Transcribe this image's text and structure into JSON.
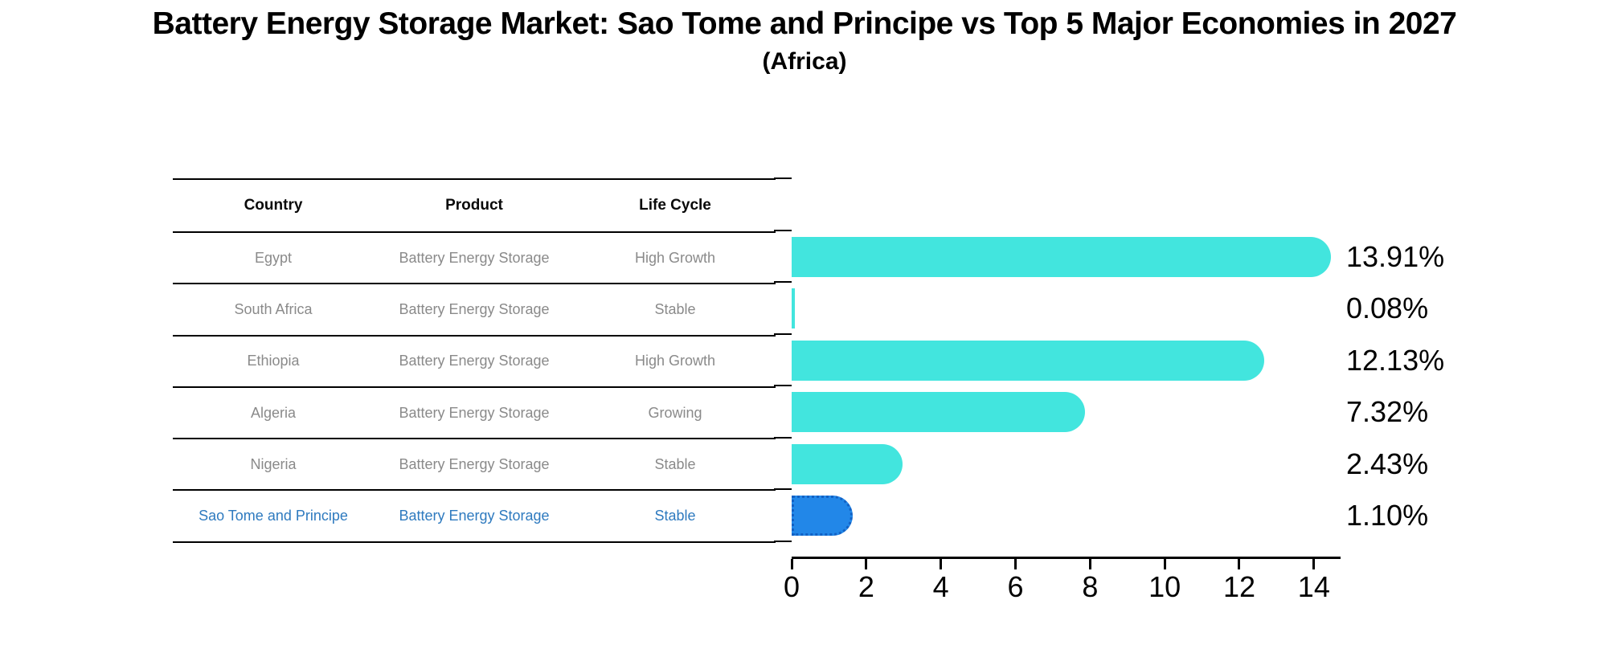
{
  "title": "Battery Energy Storage Market: Sao Tome and Principe vs Top 5 Major Economies in 2027",
  "subtitle": "(Africa)",
  "table": {
    "headers": [
      "Country",
      "Product",
      "Life Cycle"
    ],
    "rows": [
      {
        "country": "Egypt",
        "product": "Battery Energy Storage",
        "life_cycle": "High Growth",
        "highlight": false
      },
      {
        "country": "South Africa",
        "product": "Battery Energy Storage",
        "life_cycle": "Stable",
        "highlight": false
      },
      {
        "country": "Ethiopia",
        "product": "Battery Energy Storage",
        "life_cycle": "High Growth",
        "highlight": false
      },
      {
        "country": "Algeria",
        "product": "Battery Energy Storage",
        "life_cycle": "Growing",
        "highlight": false
      },
      {
        "country": "Nigeria",
        "product": "Battery Energy Storage",
        "life_cycle": "Stable",
        "highlight": false
      },
      {
        "country": "Sao Tome and Principe",
        "product": "Battery Energy Storage",
        "life_cycle": "Stable",
        "highlight": true
      }
    ]
  },
  "chart_data": {
    "type": "bar",
    "orientation": "horizontal",
    "title": "Battery Energy Storage Market: Sao Tome and Principe vs Top 5 Major Economies in 2027 (Africa)",
    "categories": [
      "Egypt",
      "South Africa",
      "Ethiopia",
      "Algeria",
      "Nigeria",
      "Sao Tome and Principe"
    ],
    "values": [
      13.91,
      0.08,
      12.13,
      7.32,
      2.43,
      1.1
    ],
    "value_labels": [
      "13.91%",
      "0.08%",
      "12.13%",
      "7.32%",
      "2.43%",
      "1.10%"
    ],
    "xlabel": "",
    "ylabel": "",
    "xlim": [
      0,
      14.65
    ],
    "x_ticks": [
      0,
      2,
      4,
      6,
      8,
      10,
      12,
      14
    ],
    "grid": false,
    "legend": false,
    "highlight_index": 5
  },
  "colors": {
    "bar_color": "#42E5DE",
    "highlight_bar_color": "#2287E8",
    "highlight_bar_border": "#1261C4",
    "text_muted": "#8a8a8a",
    "text_highlight": "#2e7abf",
    "text_dark": "#000000",
    "background": "#ffffff"
  }
}
